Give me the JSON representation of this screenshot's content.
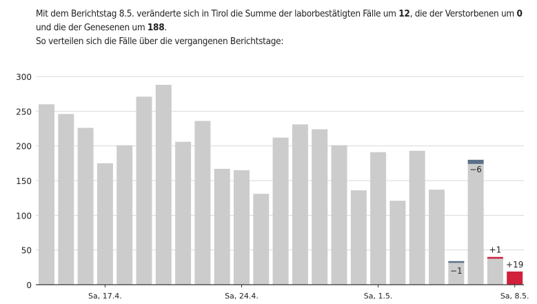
{
  "intro": {
    "line1_a": "Mit dem Berichtstag 8.5. veränderte sich in Tirol die Summe der laborbestätigten Fälle um ",
    "cases": "12",
    "line1_b": ", die der Verstorbenen um ",
    "deaths": "0",
    "line2_a": "und die der Genesenen um ",
    "recovered": "188",
    "line2_b": ".",
    "line3": "So verteilen sich die Fälle über die vergangenen Berichtstage:"
  },
  "colors": {
    "bar": "#cccccc",
    "decrease": "#5b6f86",
    "increase": "#d0203a",
    "grid": "#d8d8d8",
    "axis": "#333333"
  },
  "chart_data": {
    "type": "bar",
    "title": "",
    "xlabel": "",
    "ylabel": "",
    "ylim": [
      0,
      300
    ],
    "yticks": [
      0,
      50,
      100,
      150,
      200,
      250,
      300
    ],
    "grid": true,
    "values": [
      260,
      246,
      226,
      175,
      201,
      271,
      288,
      206,
      236,
      167,
      165,
      131,
      212,
      231,
      224,
      201,
      136,
      191,
      121,
      193,
      137,
      34,
      180,
      40,
      19
    ],
    "changes": [
      {
        "index": 21,
        "delta": -1,
        "label": "−1"
      },
      {
        "index": 22,
        "delta": -6,
        "label": "−6"
      },
      {
        "index": 23,
        "delta": 1,
        "label": "+1"
      },
      {
        "index": 24,
        "delta": 19,
        "label": "+19"
      }
    ],
    "xtick_labels": [
      {
        "index": 3,
        "label": "Sa, 17.4."
      },
      {
        "index": 10,
        "label": "Sa, 24.4."
      },
      {
        "index": 17,
        "label": "Sa, 1.5."
      },
      {
        "index": 24,
        "label": "Sa, 8.5."
      }
    ]
  }
}
